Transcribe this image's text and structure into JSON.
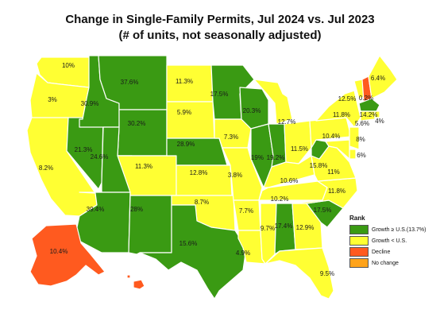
{
  "title_line_1": "Change in Single-Family Permits, Jul 2024 vs. Jul 2023",
  "title_line_2": "(# of units, not seasonally adjusted)",
  "colors": {
    "growth_above": "#3a9a13",
    "growth_below": "#ffff33",
    "decline": "#ff5a1f",
    "no_change": "#ffa31a",
    "border": "#ffffff"
  },
  "legend": {
    "title": "Rank",
    "items": [
      {
        "label": "Growth ≥ U.S.(13.7%)",
        "category": "growth_above"
      },
      {
        "label": "Growth < U.S.",
        "category": "growth_below"
      },
      {
        "label": "Decline",
        "category": "decline"
      },
      {
        "label": "No change",
        "category": "no_change"
      }
    ]
  },
  "states": [
    {
      "abbr": "WA",
      "label": "10%",
      "category": "growth_below"
    },
    {
      "abbr": "OR",
      "label": "3%",
      "category": "growth_below"
    },
    {
      "abbr": "CA",
      "label": "8.2%",
      "category": "growth_below"
    },
    {
      "abbr": "NV",
      "label": "21.3%",
      "category": "growth_above"
    },
    {
      "abbr": "ID",
      "label": "30.9%",
      "category": "growth_above"
    },
    {
      "abbr": "MT",
      "label": "37.6%",
      "category": "growth_above"
    },
    {
      "abbr": "WY",
      "label": "30.2%",
      "category": "growth_above"
    },
    {
      "abbr": "UT",
      "label": "24.6%",
      "category": "growth_above"
    },
    {
      "abbr": "AZ",
      "label": "39.4%",
      "category": "growth_above"
    },
    {
      "abbr": "CO",
      "label": "11.3%",
      "category": "growth_below"
    },
    {
      "abbr": "NM",
      "label": "28%",
      "category": "growth_above"
    },
    {
      "abbr": "ND",
      "label": "11.3%",
      "category": "growth_below"
    },
    {
      "abbr": "SD",
      "label": "5.9%",
      "category": "growth_below"
    },
    {
      "abbr": "NE",
      "label": "28.9%",
      "category": "growth_above"
    },
    {
      "abbr": "KS",
      "label": "12.8%",
      "category": "growth_below"
    },
    {
      "abbr": "OK",
      "label": "8.7%",
      "category": "growth_below"
    },
    {
      "abbr": "TX",
      "label": "15.6%",
      "category": "growth_above"
    },
    {
      "abbr": "MN",
      "label": "17.5%",
      "category": "growth_above"
    },
    {
      "abbr": "IA",
      "label": "7.3%",
      "category": "growth_below"
    },
    {
      "abbr": "MO",
      "label": "3.8%",
      "category": "growth_below"
    },
    {
      "abbr": "AR",
      "label": "7.7%",
      "category": "growth_below"
    },
    {
      "abbr": "LA",
      "label": "4.9%",
      "category": "growth_below"
    },
    {
      "abbr": "WI",
      "label": "20.3%",
      "category": "growth_above"
    },
    {
      "abbr": "IL",
      "label": "19%",
      "category": "growth_above"
    },
    {
      "abbr": "MI",
      "label": "12.7%",
      "category": "growth_below"
    },
    {
      "abbr": "IN",
      "label": "19.2%",
      "category": "growth_above"
    },
    {
      "abbr": "OH",
      "label": "11.5%",
      "category": "growth_below"
    },
    {
      "abbr": "KY",
      "label": "10.6%",
      "category": "growth_below"
    },
    {
      "abbr": "TN",
      "label": "10.2%",
      "category": "growth_below"
    },
    {
      "abbr": "MS",
      "label": "9.7%",
      "category": "growth_below"
    },
    {
      "abbr": "AL",
      "label": "17.4%",
      "category": "growth_above"
    },
    {
      "abbr": "GA",
      "label": "12.9%",
      "category": "growth_below"
    },
    {
      "abbr": "FL",
      "label": "9.5%",
      "category": "growth_below"
    },
    {
      "abbr": "SC",
      "label": "17.5%",
      "category": "growth_above"
    },
    {
      "abbr": "NC",
      "label": "11.8%",
      "category": "growth_below"
    },
    {
      "abbr": "VA",
      "label": "11%",
      "category": "growth_below"
    },
    {
      "abbr": "WV",
      "label": "15.8%",
      "category": "growth_above"
    },
    {
      "abbr": "PA",
      "label": "10.4%",
      "category": "growth_below"
    },
    {
      "abbr": "NY",
      "label": "11.8%",
      "category": "growth_below"
    },
    {
      "abbr": "VT",
      "label": "12.5%",
      "category": "growth_below"
    },
    {
      "abbr": "NH",
      "label": "0.2%",
      "category": "decline"
    },
    {
      "abbr": "ME",
      "label": "6.4%",
      "category": "growth_below"
    },
    {
      "abbr": "MA",
      "label": "14.2%",
      "category": "growth_above"
    },
    {
      "abbr": "RI",
      "label": "4%",
      "category": "growth_below"
    },
    {
      "abbr": "CT",
      "label": "5.6%",
      "category": "growth_below"
    },
    {
      "abbr": "NJ",
      "label": "8%",
      "category": "growth_below"
    },
    {
      "abbr": "DE",
      "label": "6%",
      "category": "growth_below"
    },
    {
      "abbr": "MD",
      "label": "",
      "category": "growth_below"
    },
    {
      "abbr": "AK",
      "label": "10.4%",
      "category": "decline"
    },
    {
      "abbr": "HI",
      "label": "",
      "category": "decline"
    }
  ]
}
